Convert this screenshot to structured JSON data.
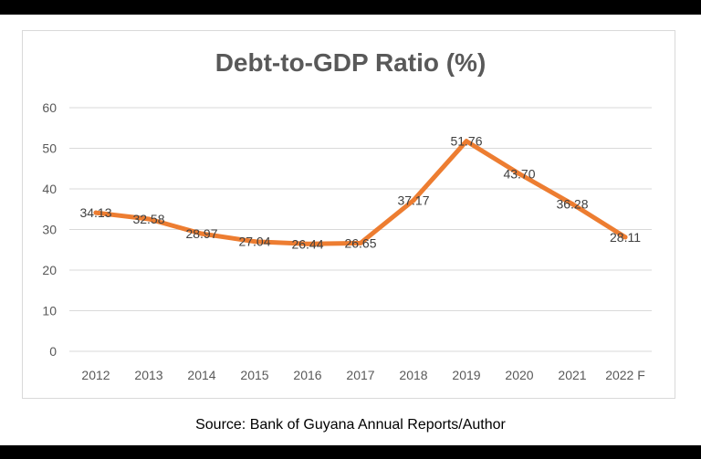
{
  "chart_data": {
    "type": "line",
    "title": "Debt-to-GDP Ratio (%)",
    "categories": [
      "2012",
      "2013",
      "2014",
      "2015",
      "2016",
      "2017",
      "2018",
      "2019",
      "2020",
      "2021",
      "2022 F"
    ],
    "series": [
      {
        "values": [
          34.13,
          32.58,
          28.97,
          27.04,
          26.44,
          26.65,
          37.17,
          51.76,
          43.7,
          36.28,
          28.11
        ],
        "labels": [
          "34.13",
          "32.58",
          "28.97",
          "27.04",
          "26.44",
          "26.65",
          "37.17",
          "51.76",
          "43.70",
          "36.28",
          "28.11"
        ],
        "color": "#ED7D31"
      }
    ],
    "ylim": [
      0,
      60
    ],
    "yticks": [
      "0",
      "10",
      "20",
      "30",
      "40",
      "50",
      "60"
    ],
    "grid": true,
    "legend": false,
    "xlabel": "",
    "ylabel": ""
  },
  "source": "Source: Bank of Guyana Annual Reports/Author",
  "colors": {
    "line": "#ED7D31",
    "grid": "#d9d9d9",
    "tick_text": "#595959",
    "label_text": "#404040"
  }
}
